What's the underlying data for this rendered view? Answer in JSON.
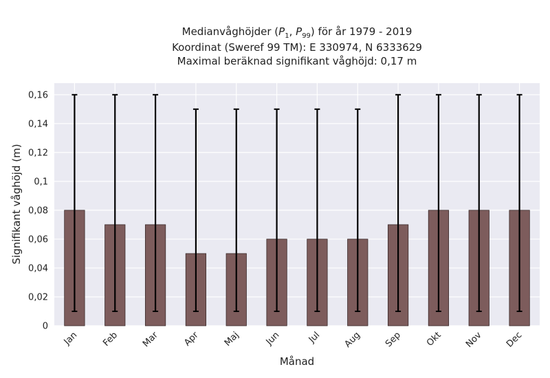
{
  "chart_data": {
    "type": "bar",
    "title_lines": [
      "Medianvåghöjder (P1, P99) för år 1979 - 2019",
      "Koordinat (Sweref 99 TM): E 330974, N 6333629",
      "Maximal beräknad signifikant våghöjd: 0,17 m"
    ],
    "xlabel": "Månad",
    "ylabel": "Signifikant våghöjd (m)",
    "categories": [
      "Jan",
      "Feb",
      "Mar",
      "Apr",
      "Maj",
      "Jun",
      "Jul",
      "Aug",
      "Sep",
      "Okt",
      "Nov",
      "Dec"
    ],
    "values": [
      0.08,
      0.07,
      0.07,
      0.05,
      0.05,
      0.06,
      0.06,
      0.06,
      0.07,
      0.08,
      0.08,
      0.08
    ],
    "error_low": [
      0.01,
      0.01,
      0.01,
      0.01,
      0.01,
      0.01,
      0.01,
      0.01,
      0.01,
      0.01,
      0.01,
      0.01
    ],
    "error_high": [
      0.16,
      0.16,
      0.16,
      0.15,
      0.15,
      0.15,
      0.15,
      0.15,
      0.16,
      0.16,
      0.16,
      0.16
    ],
    "ylim": [
      0,
      0.168
    ],
    "yticks": [
      0,
      0.02,
      0.04,
      0.06,
      0.08,
      0.1,
      0.12,
      0.14,
      0.16
    ],
    "ytick_labels": [
      "0",
      "0,02",
      "0,04",
      "0,06",
      "0,08",
      "0,1",
      "0,12",
      "0,14",
      "0,16"
    ],
    "grid": true,
    "colors": {
      "bar": "#7d5c5c",
      "bar_edge": "#3a2a2a",
      "errorbar": "#000000",
      "plot_bg": "#eaeaf2",
      "grid": "#ffffff"
    }
  }
}
